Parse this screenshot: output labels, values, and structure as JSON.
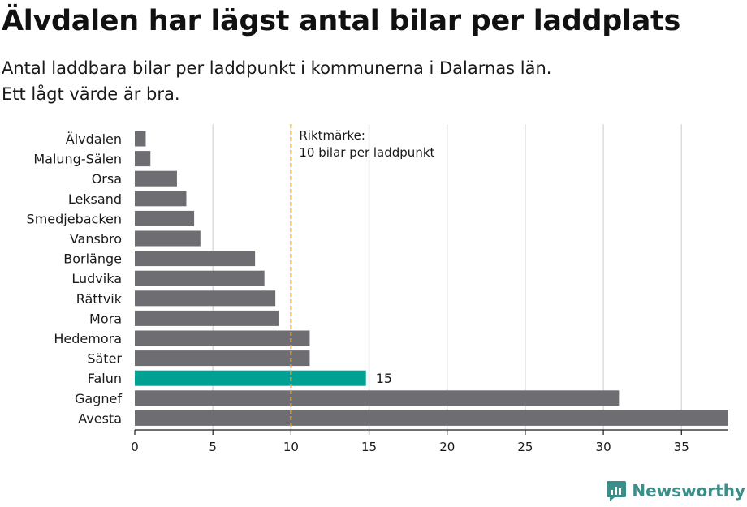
{
  "title": "Älvdalen har lägst antal bilar per laddplats",
  "subtitle_line1": "Antal laddbara bilar per laddpunkt i kommunerna i Dalarnas län.",
  "subtitle_line2": "Ett lågt värde är bra.",
  "logo_text": "Newsworthy",
  "colors": {
    "bar": "#6e6d72",
    "highlight": "#00a093",
    "reference_line": "#e0a84a",
    "grid": "#dcdcdc",
    "logo": "#3a8f8a"
  },
  "chart_data": {
    "type": "bar",
    "orientation": "horizontal",
    "categories": [
      "Älvdalen",
      "Malung-Sälen",
      "Orsa",
      "Leksand",
      "Smedjebacken",
      "Vansbro",
      "Borlänge",
      "Ludvika",
      "Rättvik",
      "Mora",
      "Hedemora",
      "Säter",
      "Falun",
      "Gagnef",
      "Avesta"
    ],
    "values": [
      0.7,
      1.0,
      2.7,
      3.3,
      3.8,
      4.2,
      7.7,
      8.3,
      9.0,
      9.2,
      11.2,
      11.2,
      14.8,
      31.0,
      38.0
    ],
    "highlight": "Falun",
    "data_labels": [
      {
        "category": "Falun",
        "text": "15"
      }
    ],
    "xlim": [
      0,
      38
    ],
    "xticks": [
      0,
      5,
      10,
      15,
      20,
      25,
      30,
      35
    ],
    "grid": true,
    "reference_line": {
      "value": 10,
      "label_line1": "Riktmärke:",
      "label_line2": "10 bilar per laddpunkt"
    }
  }
}
